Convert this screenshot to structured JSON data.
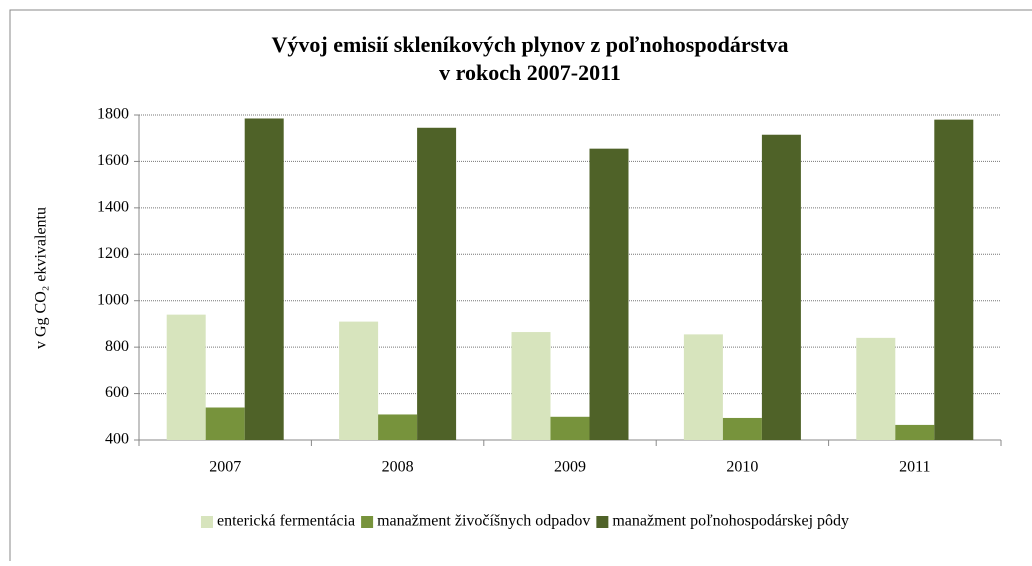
{
  "chart_data": {
    "type": "bar",
    "title": [
      "Vývoj emisií skleníkových plynov z poľnohospodárstva",
      "v rokoch 2007-2011"
    ],
    "y_label": "v Gg  CO₂ ekvivalentu",
    "categories": [
      "2007",
      "2008",
      "2009",
      "2010",
      "2011"
    ],
    "series": [
      {
        "name": "enterická fermentácia",
        "color": "#d7e4bd",
        "values": [
          940,
          910,
          865,
          855,
          840
        ]
      },
      {
        "name": "manažment živočíšnych odpadov",
        "color": "#77933c",
        "values": [
          540,
          510,
          500,
          495,
          465
        ]
      },
      {
        "name": "manažment poľnohospodárskej pôdy",
        "color": "#4f6228",
        "values": [
          1785,
          1745,
          1655,
          1715,
          1780
        ]
      }
    ],
    "ylim": [
      400,
      1800
    ],
    "yticks": [
      400,
      600,
      800,
      1000,
      1200,
      1400,
      1600,
      1800
    ],
    "grid": true,
    "legend": "bottom"
  }
}
